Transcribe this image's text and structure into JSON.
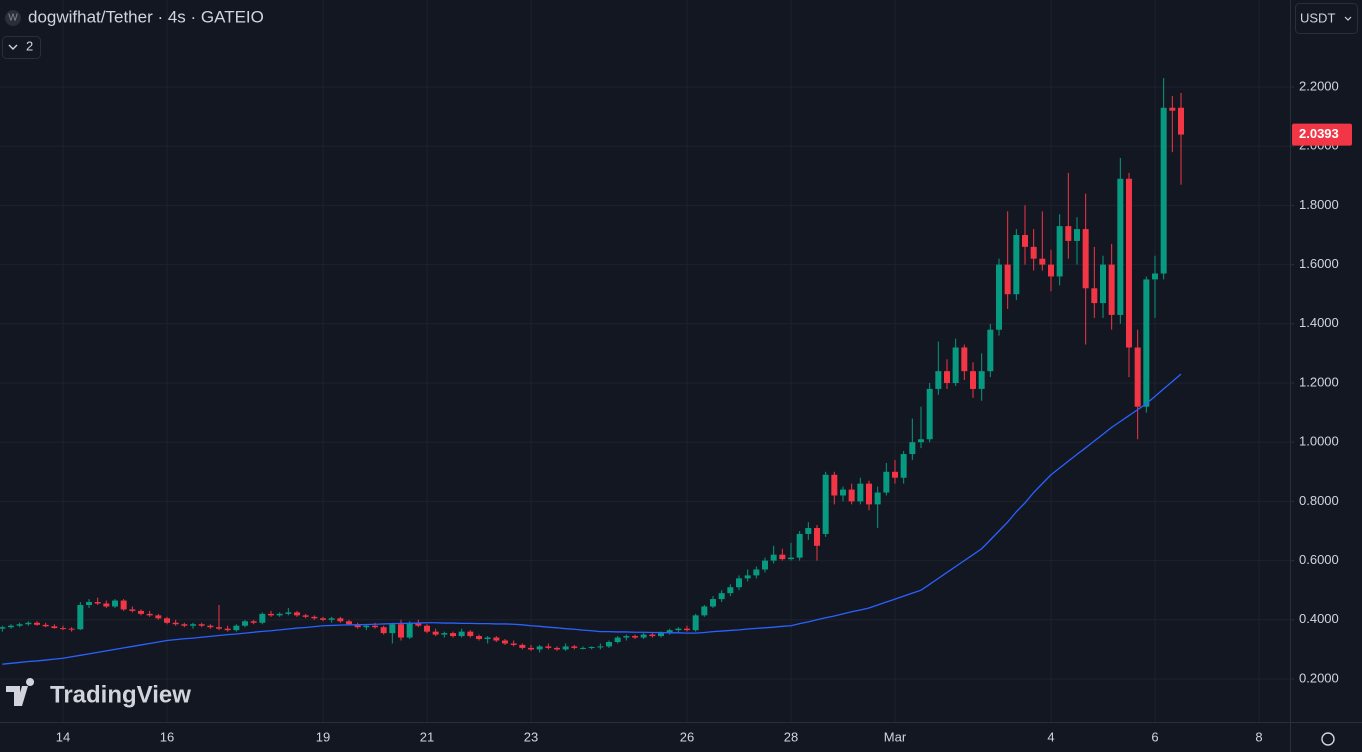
{
  "chart_data": {
    "type": "candlestick",
    "title": "dogwifhat/Tether · 4s · GATEIO",
    "up_color": "#089981",
    "down_color": "#f23645",
    "ma_color": "#2962ff",
    "ylim": [
      0.0547,
      2.494
    ],
    "yticks": [
      {
        "value": 0.2,
        "label": "0.2000"
      },
      {
        "value": 0.4,
        "label": "0.4000"
      },
      {
        "value": 0.6,
        "label": "0.6000"
      },
      {
        "value": 0.8,
        "label": "0.8000"
      },
      {
        "value": 1.0,
        "label": "1.0000"
      },
      {
        "value": 1.2,
        "label": "1.2000"
      },
      {
        "value": 1.4,
        "label": "1.4000"
      },
      {
        "value": 1.6,
        "label": "1.6000"
      },
      {
        "value": 1.8,
        "label": "1.8000"
      },
      {
        "value": 2.0,
        "label": "2.0000"
      },
      {
        "value": 2.2,
        "label": "2.2000"
      }
    ],
    "grid": true,
    "categories": [
      null,
      null,
      null,
      null,
      null,
      null,
      null,
      "14",
      null,
      null,
      null,
      null,
      null,
      null,
      null,
      null,
      null,
      null,
      null,
      "16",
      null,
      null,
      null,
      null,
      null,
      null,
      null,
      null,
      null,
      null,
      null,
      null,
      null,
      null,
      null,
      null,
      null,
      "19",
      null,
      null,
      null,
      null,
      null,
      null,
      null,
      null,
      null,
      null,
      null,
      "21",
      null,
      null,
      null,
      null,
      null,
      null,
      null,
      null,
      null,
      null,
      null,
      "23",
      null,
      null,
      null,
      null,
      null,
      null,
      null,
      null,
      null,
      null,
      null,
      null,
      null,
      null,
      null,
      null,
      null,
      "26",
      null,
      null,
      null,
      null,
      null,
      null,
      null,
      null,
      null,
      null,
      null,
      "28",
      null,
      null,
      null,
      null,
      null,
      null,
      null,
      null,
      null,
      null,
      null,
      "Mar",
      null,
      null,
      null,
      null,
      null,
      null,
      null,
      null,
      null,
      null,
      null,
      null,
      null,
      null,
      null,
      null,
      null,
      "4",
      null,
      null,
      null,
      null,
      null,
      null,
      null,
      null,
      null,
      null,
      null,
      "6",
      null,
      null,
      null,
      null,
      null,
      null,
      null,
      null,
      null,
      null,
      null,
      "8"
    ],
    "ohlc": [
      [
        0.37,
        0.38,
        0.36,
        0.375
      ],
      [
        0.375,
        0.385,
        0.37,
        0.38
      ],
      [
        0.38,
        0.39,
        0.375,
        0.385
      ],
      [
        0.385,
        0.395,
        0.38,
        0.39
      ],
      [
        0.39,
        0.395,
        0.38,
        0.383
      ],
      [
        0.383,
        0.39,
        0.375,
        0.378
      ],
      [
        0.378,
        0.385,
        0.37,
        0.372
      ],
      [
        0.372,
        0.38,
        0.365,
        0.37
      ],
      [
        0.37,
        0.375,
        0.36,
        0.368
      ],
      [
        0.368,
        0.46,
        0.365,
        0.45
      ],
      [
        0.45,
        0.47,
        0.44,
        0.46
      ],
      [
        0.46,
        0.475,
        0.45,
        0.455
      ],
      [
        0.455,
        0.465,
        0.44,
        0.445
      ],
      [
        0.445,
        0.47,
        0.44,
        0.465
      ],
      [
        0.465,
        0.47,
        0.43,
        0.435
      ],
      [
        0.435,
        0.445,
        0.425,
        0.43
      ],
      [
        0.43,
        0.435,
        0.415,
        0.42
      ],
      [
        0.42,
        0.43,
        0.41,
        0.415
      ],
      [
        0.415,
        0.42,
        0.4,
        0.405
      ],
      [
        0.405,
        0.41,
        0.385,
        0.39
      ],
      [
        0.39,
        0.4,
        0.38,
        0.385
      ],
      [
        0.385,
        0.39,
        0.375,
        0.38
      ],
      [
        0.38,
        0.39,
        0.37,
        0.385
      ],
      [
        0.385,
        0.39,
        0.375,
        0.38
      ],
      [
        0.38,
        0.385,
        0.37,
        0.375
      ],
      [
        0.375,
        0.45,
        0.365,
        0.37
      ],
      [
        0.37,
        0.38,
        0.36,
        0.365
      ],
      [
        0.365,
        0.385,
        0.36,
        0.38
      ],
      [
        0.38,
        0.4,
        0.375,
        0.395
      ],
      [
        0.395,
        0.4,
        0.385,
        0.39
      ],
      [
        0.39,
        0.425,
        0.385,
        0.42
      ],
      [
        0.42,
        0.43,
        0.41,
        0.415
      ],
      [
        0.415,
        0.425,
        0.41,
        0.42
      ],
      [
        0.42,
        0.44,
        0.415,
        0.425
      ],
      [
        0.425,
        0.43,
        0.41,
        0.415
      ],
      [
        0.415,
        0.42,
        0.405,
        0.41
      ],
      [
        0.41,
        0.415,
        0.4,
        0.405
      ],
      [
        0.405,
        0.41,
        0.395,
        0.4
      ],
      [
        0.4,
        0.41,
        0.39,
        0.405
      ],
      [
        0.405,
        0.41,
        0.39,
        0.395
      ],
      [
        0.395,
        0.4,
        0.38,
        0.385
      ],
      [
        0.385,
        0.39,
        0.37,
        0.375
      ],
      [
        0.375,
        0.385,
        0.365,
        0.38
      ],
      [
        0.38,
        0.39,
        0.37,
        0.375
      ],
      [
        0.375,
        0.38,
        0.35,
        0.355
      ],
      [
        0.355,
        0.39,
        0.32,
        0.385
      ],
      [
        0.385,
        0.4,
        0.33,
        0.34
      ],
      [
        0.34,
        0.395,
        0.335,
        0.39
      ],
      [
        0.39,
        0.4,
        0.375,
        0.38
      ],
      [
        0.38,
        0.385,
        0.355,
        0.36
      ],
      [
        0.36,
        0.37,
        0.345,
        0.35
      ],
      [
        0.35,
        0.36,
        0.34,
        0.355
      ],
      [
        0.355,
        0.36,
        0.34,
        0.345
      ],
      [
        0.345,
        0.37,
        0.34,
        0.36
      ],
      [
        0.36,
        0.365,
        0.34,
        0.345
      ],
      [
        0.345,
        0.35,
        0.33,
        0.335
      ],
      [
        0.335,
        0.345,
        0.32,
        0.34
      ],
      [
        0.34,
        0.345,
        0.325,
        0.33
      ],
      [
        0.33,
        0.335,
        0.315,
        0.32
      ],
      [
        0.32,
        0.33,
        0.31,
        0.315
      ],
      [
        0.315,
        0.32,
        0.3,
        0.305
      ],
      [
        0.305,
        0.315,
        0.295,
        0.3
      ],
      [
        0.3,
        0.315,
        0.29,
        0.31
      ],
      [
        0.31,
        0.32,
        0.3,
        0.305
      ],
      [
        0.305,
        0.31,
        0.295,
        0.3
      ],
      [
        0.3,
        0.32,
        0.295,
        0.31
      ],
      [
        0.31,
        0.315,
        0.3,
        0.305
      ],
      [
        0.305,
        0.31,
        0.3,
        0.305
      ],
      [
        0.305,
        0.31,
        0.3,
        0.308
      ],
      [
        0.308,
        0.32,
        0.3,
        0.31
      ],
      [
        0.31,
        0.33,
        0.305,
        0.325
      ],
      [
        0.325,
        0.345,
        0.32,
        0.34
      ],
      [
        0.34,
        0.35,
        0.33,
        0.345
      ],
      [
        0.345,
        0.35,
        0.335,
        0.34
      ],
      [
        0.34,
        0.355,
        0.335,
        0.35
      ],
      [
        0.35,
        0.355,
        0.34,
        0.345
      ],
      [
        0.345,
        0.36,
        0.34,
        0.355
      ],
      [
        0.355,
        0.37,
        0.35,
        0.365
      ],
      [
        0.365,
        0.375,
        0.355,
        0.37
      ],
      [
        0.37,
        0.38,
        0.36,
        0.365
      ],
      [
        0.365,
        0.42,
        0.36,
        0.415
      ],
      [
        0.415,
        0.45,
        0.41,
        0.445
      ],
      [
        0.445,
        0.48,
        0.44,
        0.47
      ],
      [
        0.47,
        0.5,
        0.46,
        0.49
      ],
      [
        0.49,
        0.52,
        0.48,
        0.51
      ],
      [
        0.51,
        0.55,
        0.5,
        0.54
      ],
      [
        0.54,
        0.57,
        0.53,
        0.55
      ],
      [
        0.55,
        0.58,
        0.54,
        0.57
      ],
      [
        0.57,
        0.61,
        0.56,
        0.6
      ],
      [
        0.6,
        0.65,
        0.59,
        0.62
      ],
      [
        0.62,
        0.64,
        0.6,
        0.605
      ],
      [
        0.605,
        0.66,
        0.6,
        0.61
      ],
      [
        0.61,
        0.7,
        0.6,
        0.69
      ],
      [
        0.69,
        0.73,
        0.67,
        0.71
      ],
      [
        0.71,
        0.72,
        0.6,
        0.65
      ],
      [
        0.69,
        0.9,
        0.68,
        0.89
      ],
      [
        0.89,
        0.9,
        0.79,
        0.82
      ],
      [
        0.82,
        0.85,
        0.8,
        0.84
      ],
      [
        0.84,
        0.86,
        0.79,
        0.8
      ],
      [
        0.8,
        0.88,
        0.79,
        0.86
      ],
      [
        0.86,
        0.87,
        0.77,
        0.79
      ],
      [
        0.79,
        0.85,
        0.71,
        0.83
      ],
      [
        0.83,
        0.93,
        0.82,
        0.9
      ],
      [
        0.9,
        0.94,
        0.86,
        0.88
      ],
      [
        0.88,
        0.97,
        0.86,
        0.96
      ],
      [
        0.96,
        1.08,
        0.94,
        1.0
      ],
      [
        1.0,
        1.12,
        0.98,
        1.01
      ],
      [
        1.01,
        1.2,
        1.0,
        1.18
      ],
      [
        1.18,
        1.34,
        1.16,
        1.24
      ],
      [
        1.24,
        1.28,
        1.18,
        1.2
      ],
      [
        1.2,
        1.35,
        1.19,
        1.32
      ],
      [
        1.32,
        1.33,
        1.21,
        1.24
      ],
      [
        1.24,
        1.27,
        1.15,
        1.18
      ],
      [
        1.18,
        1.3,
        1.14,
        1.24
      ],
      [
        1.24,
        1.4,
        1.22,
        1.38
      ],
      [
        1.38,
        1.62,
        1.36,
        1.6
      ],
      [
        1.6,
        1.78,
        1.45,
        1.5
      ],
      [
        1.5,
        1.72,
        1.48,
        1.7
      ],
      [
        1.7,
        1.8,
        1.6,
        1.66
      ],
      [
        1.66,
        1.72,
        1.58,
        1.62
      ],
      [
        1.62,
        1.78,
        1.58,
        1.6
      ],
      [
        1.6,
        1.65,
        1.51,
        1.56
      ],
      [
        1.56,
        1.77,
        1.53,
        1.73
      ],
      [
        1.73,
        1.91,
        1.62,
        1.68
      ],
      [
        1.68,
        1.76,
        1.6,
        1.72
      ],
      [
        1.72,
        1.84,
        1.33,
        1.52
      ],
      [
        1.52,
        1.66,
        1.42,
        1.47
      ],
      [
        1.47,
        1.63,
        1.42,
        1.6
      ],
      [
        1.6,
        1.67,
        1.38,
        1.43
      ],
      [
        1.43,
        1.96,
        1.4,
        1.89
      ],
      [
        1.89,
        1.91,
        1.22,
        1.32
      ],
      [
        1.32,
        1.38,
        1.01,
        1.12
      ],
      [
        1.12,
        1.56,
        1.1,
        1.55
      ],
      [
        1.55,
        1.63,
        1.42,
        1.57
      ],
      [
        1.57,
        2.23,
        1.55,
        2.13
      ],
      [
        2.13,
        2.17,
        1.98,
        2.12
      ],
      [
        2.13,
        2.18,
        1.87,
        2.0393
      ],
      null,
      null,
      null,
      null,
      null,
      null,
      null,
      null,
      null
    ],
    "ma": [
      0.25,
      0.253,
      0.256,
      0.259,
      0.261,
      0.264,
      0.267,
      0.27,
      0.275,
      0.28,
      0.285,
      0.29,
      0.295,
      0.3,
      0.305,
      0.31,
      0.315,
      0.32,
      0.325,
      0.33,
      0.333,
      0.336,
      0.338,
      0.341,
      0.344,
      0.347,
      0.35,
      0.352,
      0.355,
      0.358,
      0.361,
      0.363,
      0.366,
      0.369,
      0.372,
      0.374,
      0.377,
      0.38,
      0.381,
      0.382,
      0.383,
      0.383,
      0.384,
      0.385,
      0.386,
      0.387,
      0.388,
      0.388,
      0.389,
      0.39,
      0.39,
      0.389,
      0.389,
      0.388,
      0.388,
      0.387,
      0.387,
      0.386,
      0.386,
      0.385,
      0.383,
      0.38,
      0.378,
      0.375,
      0.373,
      0.37,
      0.368,
      0.365,
      0.363,
      0.36,
      0.36,
      0.359,
      0.359,
      0.358,
      0.358,
      0.357,
      0.357,
      0.356,
      0.356,
      0.355,
      0.355,
      0.357,
      0.36,
      0.362,
      0.364,
      0.366,
      0.369,
      0.371,
      0.373,
      0.375,
      0.378,
      0.38,
      0.387,
      0.393,
      0.4,
      0.407,
      0.413,
      0.42,
      0.427,
      0.433,
      0.44,
      0.45,
      0.46,
      0.47,
      0.48,
      0.49,
      0.5,
      0.52,
      0.54,
      0.56,
      0.58,
      0.6,
      0.62,
      0.64,
      0.67,
      0.7,
      0.73,
      0.765,
      0.795,
      0.83,
      0.86,
      0.89,
      0.913,
      0.936,
      0.959,
      0.981,
      1.004,
      1.027,
      1.05,
      1.07,
      1.09,
      1.11,
      1.13,
      1.155,
      1.18,
      1.205,
      1.23,
      null,
      null,
      null,
      null,
      null,
      null,
      null,
      null,
      null
    ]
  },
  "ui": {
    "symbol_icon": "W",
    "indicator_count": "2",
    "currency": "USDT",
    "brand": "TradingView"
  }
}
